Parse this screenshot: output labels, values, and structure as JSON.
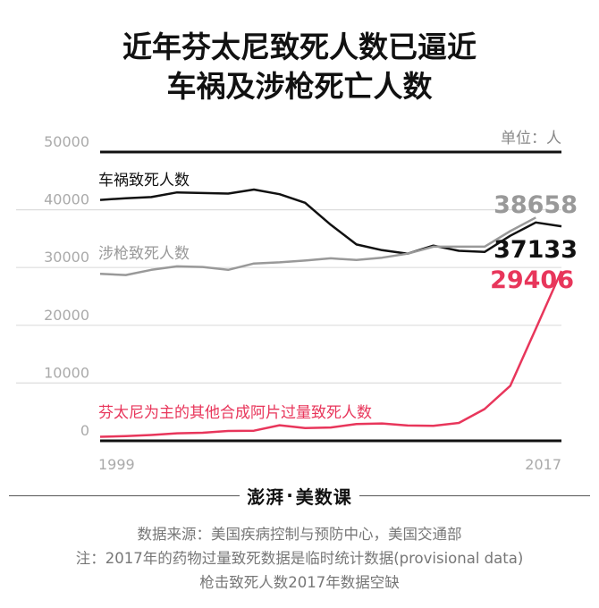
{
  "title_lines": [
    "近年芬太尼致死人数已逼近",
    "车祸及涉枪死亡人数"
  ],
  "unit_label": "单位：人",
  "chart_data": {
    "type": "line",
    "title": "近年芬太尼致死人数已逼近车祸及涉枪死亡人数",
    "xlabel": "",
    "ylabel": "单位：人",
    "ylim": [
      0,
      50000
    ],
    "xlim": [
      1999,
      2017
    ],
    "grid": true,
    "yticks": [
      0,
      10000,
      20000,
      30000,
      40000,
      50000
    ],
    "ytick_labels": [
      "0",
      "10000",
      "20000",
      "30000",
      "40000",
      "50000"
    ],
    "xtick_labels": [
      "1999",
      "2017"
    ],
    "series": [
      {
        "name": "车祸致死人数",
        "color": "#111111",
        "x": [
          1999,
          2000,
          2001,
          2002,
          2003,
          2004,
          2005,
          2006,
          2007,
          2008,
          2009,
          2010,
          2011,
          2012,
          2013,
          2014,
          2015,
          2016,
          2017
        ],
        "values": [
          41700,
          42000,
          42200,
          43000,
          42900,
          42800,
          43500,
          42700,
          41200,
          37400,
          34000,
          33000,
          32400,
          33800,
          32900,
          32700,
          35500,
          37800,
          37133
        ],
        "end_label": "37133"
      },
      {
        "name": "涉枪致死人数",
        "color": "#999999",
        "x": [
          1999,
          2000,
          2001,
          2002,
          2003,
          2004,
          2005,
          2006,
          2007,
          2008,
          2009,
          2010,
          2011,
          2012,
          2013,
          2014,
          2015,
          2016
        ],
        "values": [
          28900,
          28700,
          29600,
          30200,
          30100,
          29600,
          30700,
          30900,
          31200,
          31600,
          31300,
          31700,
          32400,
          33600,
          33600,
          33600,
          36300,
          38658
        ],
        "end_label": "38658"
      },
      {
        "name": "芬太尼为主的其他合成阿片过量致死人数",
        "color": "#e8365b",
        "x": [
          1999,
          2000,
          2001,
          2002,
          2003,
          2004,
          2005,
          2006,
          2007,
          2008,
          2009,
          2010,
          2011,
          2012,
          2013,
          2014,
          2015,
          2016,
          2017
        ],
        "values": [
          700,
          800,
          1000,
          1300,
          1400,
          1700,
          1750,
          2700,
          2200,
          2300,
          2900,
          3000,
          2650,
          2600,
          3100,
          5500,
          9500,
          19400,
          29406
        ],
        "end_label": "29406"
      }
    ]
  },
  "footer": {
    "logo_text": "澎湃",
    "logo_dot": "·",
    "logo_section": "美数课",
    "source": "数据来源：美国疾病控制与预防中心，美国交通部",
    "note": "注：2017年的药物过量致死数据是临时统计数据(provisional data)",
    "note2": "枪击致死人数2017年数据空缺"
  }
}
